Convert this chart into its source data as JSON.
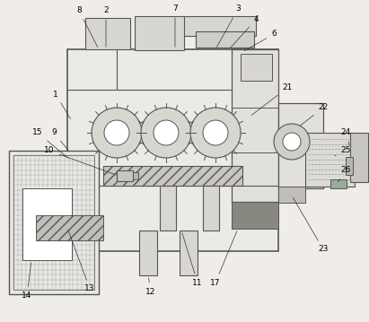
{
  "bg": "#f0ede8",
  "lc": "#555555",
  "fc_main": "#e8e6e0",
  "fc_light": "#d8d6d0",
  "fc_med": "#c8c6c0",
  "fc_dark": "#888880",
  "figsize": [
    4.11,
    3.59
  ],
  "dpi": 100
}
